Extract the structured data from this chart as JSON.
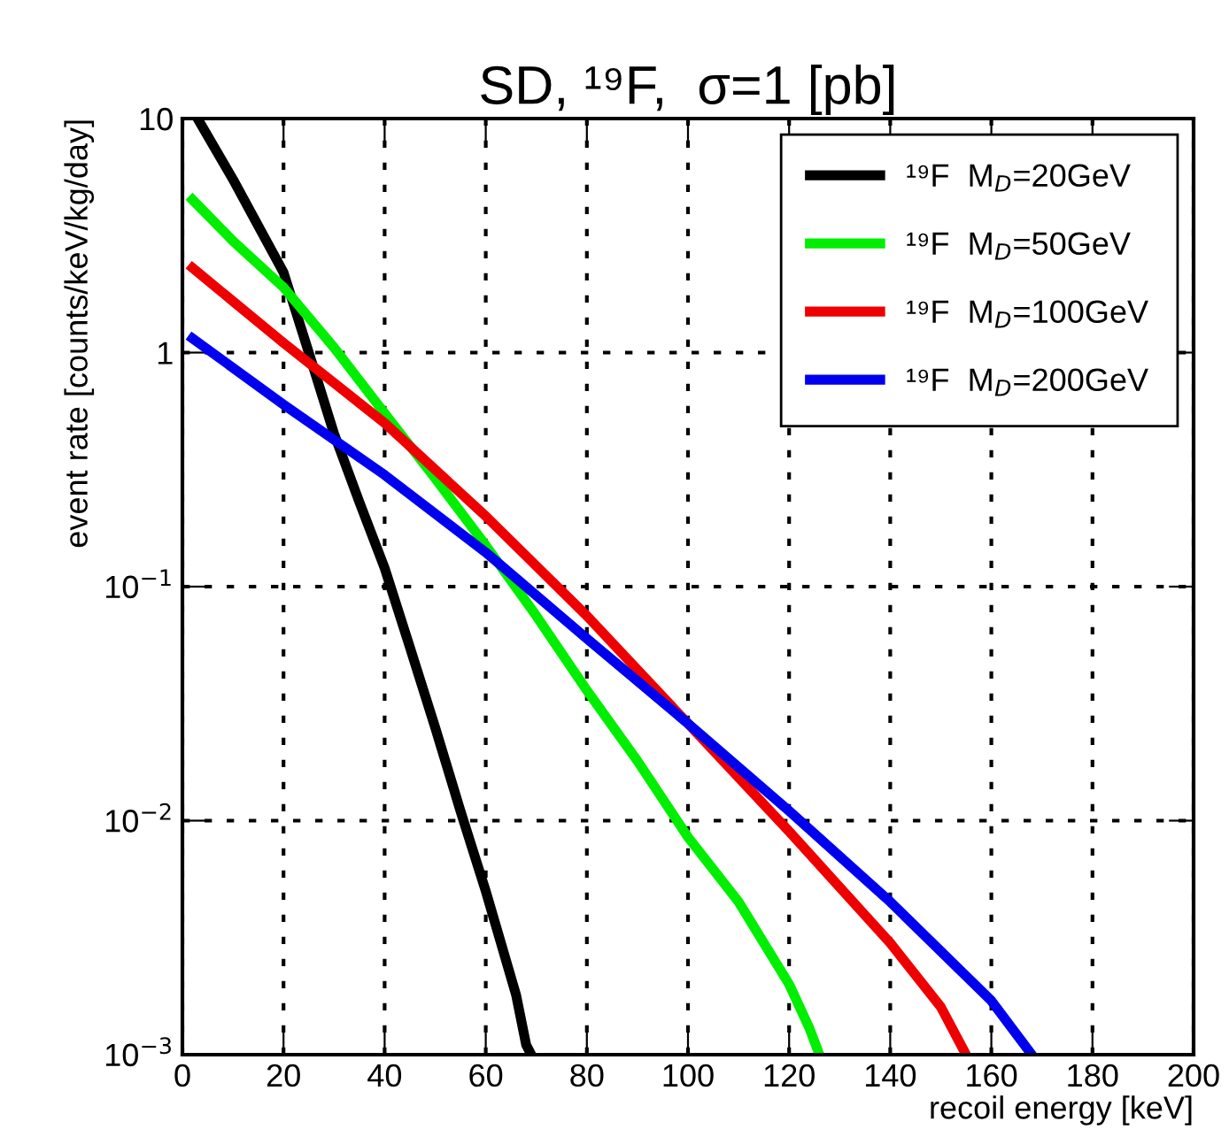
{
  "chart_data": {
    "type": "line",
    "title": "SD, ¹⁹F,  σ=1 [pb]",
    "xlabel": "recoil energy [keV]",
    "ylabel": "event rate [counts/keV/kg/day]",
    "log": "y",
    "xlim": [
      0,
      200
    ],
    "ylim": [
      0.001,
      10
    ],
    "xticks": [
      0,
      20,
      40,
      60,
      80,
      100,
      120,
      140,
      160,
      180,
      200
    ],
    "yticks": [
      {
        "value": 0.001,
        "label": "10$^{−3}$"
      },
      {
        "value": 0.01,
        "label": "10$^{−2}$"
      },
      {
        "value": 0.1,
        "label": "10$^{−1}$"
      },
      1,
      10
    ],
    "grid": true,
    "legend": "top right",
    "line_style": "solid",
    "marker": "none",
    "series": [
      {
        "name": "¹⁹F  M$_{D}$=20GeV",
        "color": "#000000",
        "x": [
          3,
          10,
          20,
          25,
          30,
          35,
          40,
          45,
          50,
          55,
          60,
          63,
          66,
          68,
          69
        ],
        "values": [
          10,
          5.5,
          2.2,
          1.0,
          0.45,
          0.23,
          0.12,
          0.055,
          0.025,
          0.011,
          0.005,
          0.003,
          0.0018,
          0.0011,
          0.001
        ]
      },
      {
        "name": "¹⁹F  M$_{D}$=50GeV",
        "color": "#00ee00",
        "x": [
          2,
          10,
          20,
          30,
          40,
          50,
          60,
          70,
          80,
          90,
          100,
          110,
          120,
          124,
          126
        ],
        "values": [
          4.5,
          3.0,
          1.9,
          1.05,
          0.55,
          0.29,
          0.15,
          0.075,
          0.036,
          0.018,
          0.0085,
          0.0045,
          0.002,
          0.0013,
          0.001
        ]
      },
      {
        "name": "¹⁹F  M$_{D}$=100GeV",
        "color": "#ee0000",
        "x": [
          2,
          20,
          40,
          60,
          80,
          100,
          120,
          140,
          150,
          155
        ],
        "values": [
          2.3,
          1.1,
          0.5,
          0.2,
          0.075,
          0.026,
          0.009,
          0.003,
          0.0016,
          0.001
        ]
      },
      {
        "name": "¹⁹F  M$_{D}$=200GeV",
        "color": "#0000ee",
        "x": [
          2,
          20,
          40,
          60,
          80,
          100,
          120,
          140,
          160,
          168
        ],
        "values": [
          1.15,
          0.6,
          0.3,
          0.14,
          0.06,
          0.026,
          0.011,
          0.0045,
          0.0017,
          0.001
        ]
      }
    ]
  }
}
